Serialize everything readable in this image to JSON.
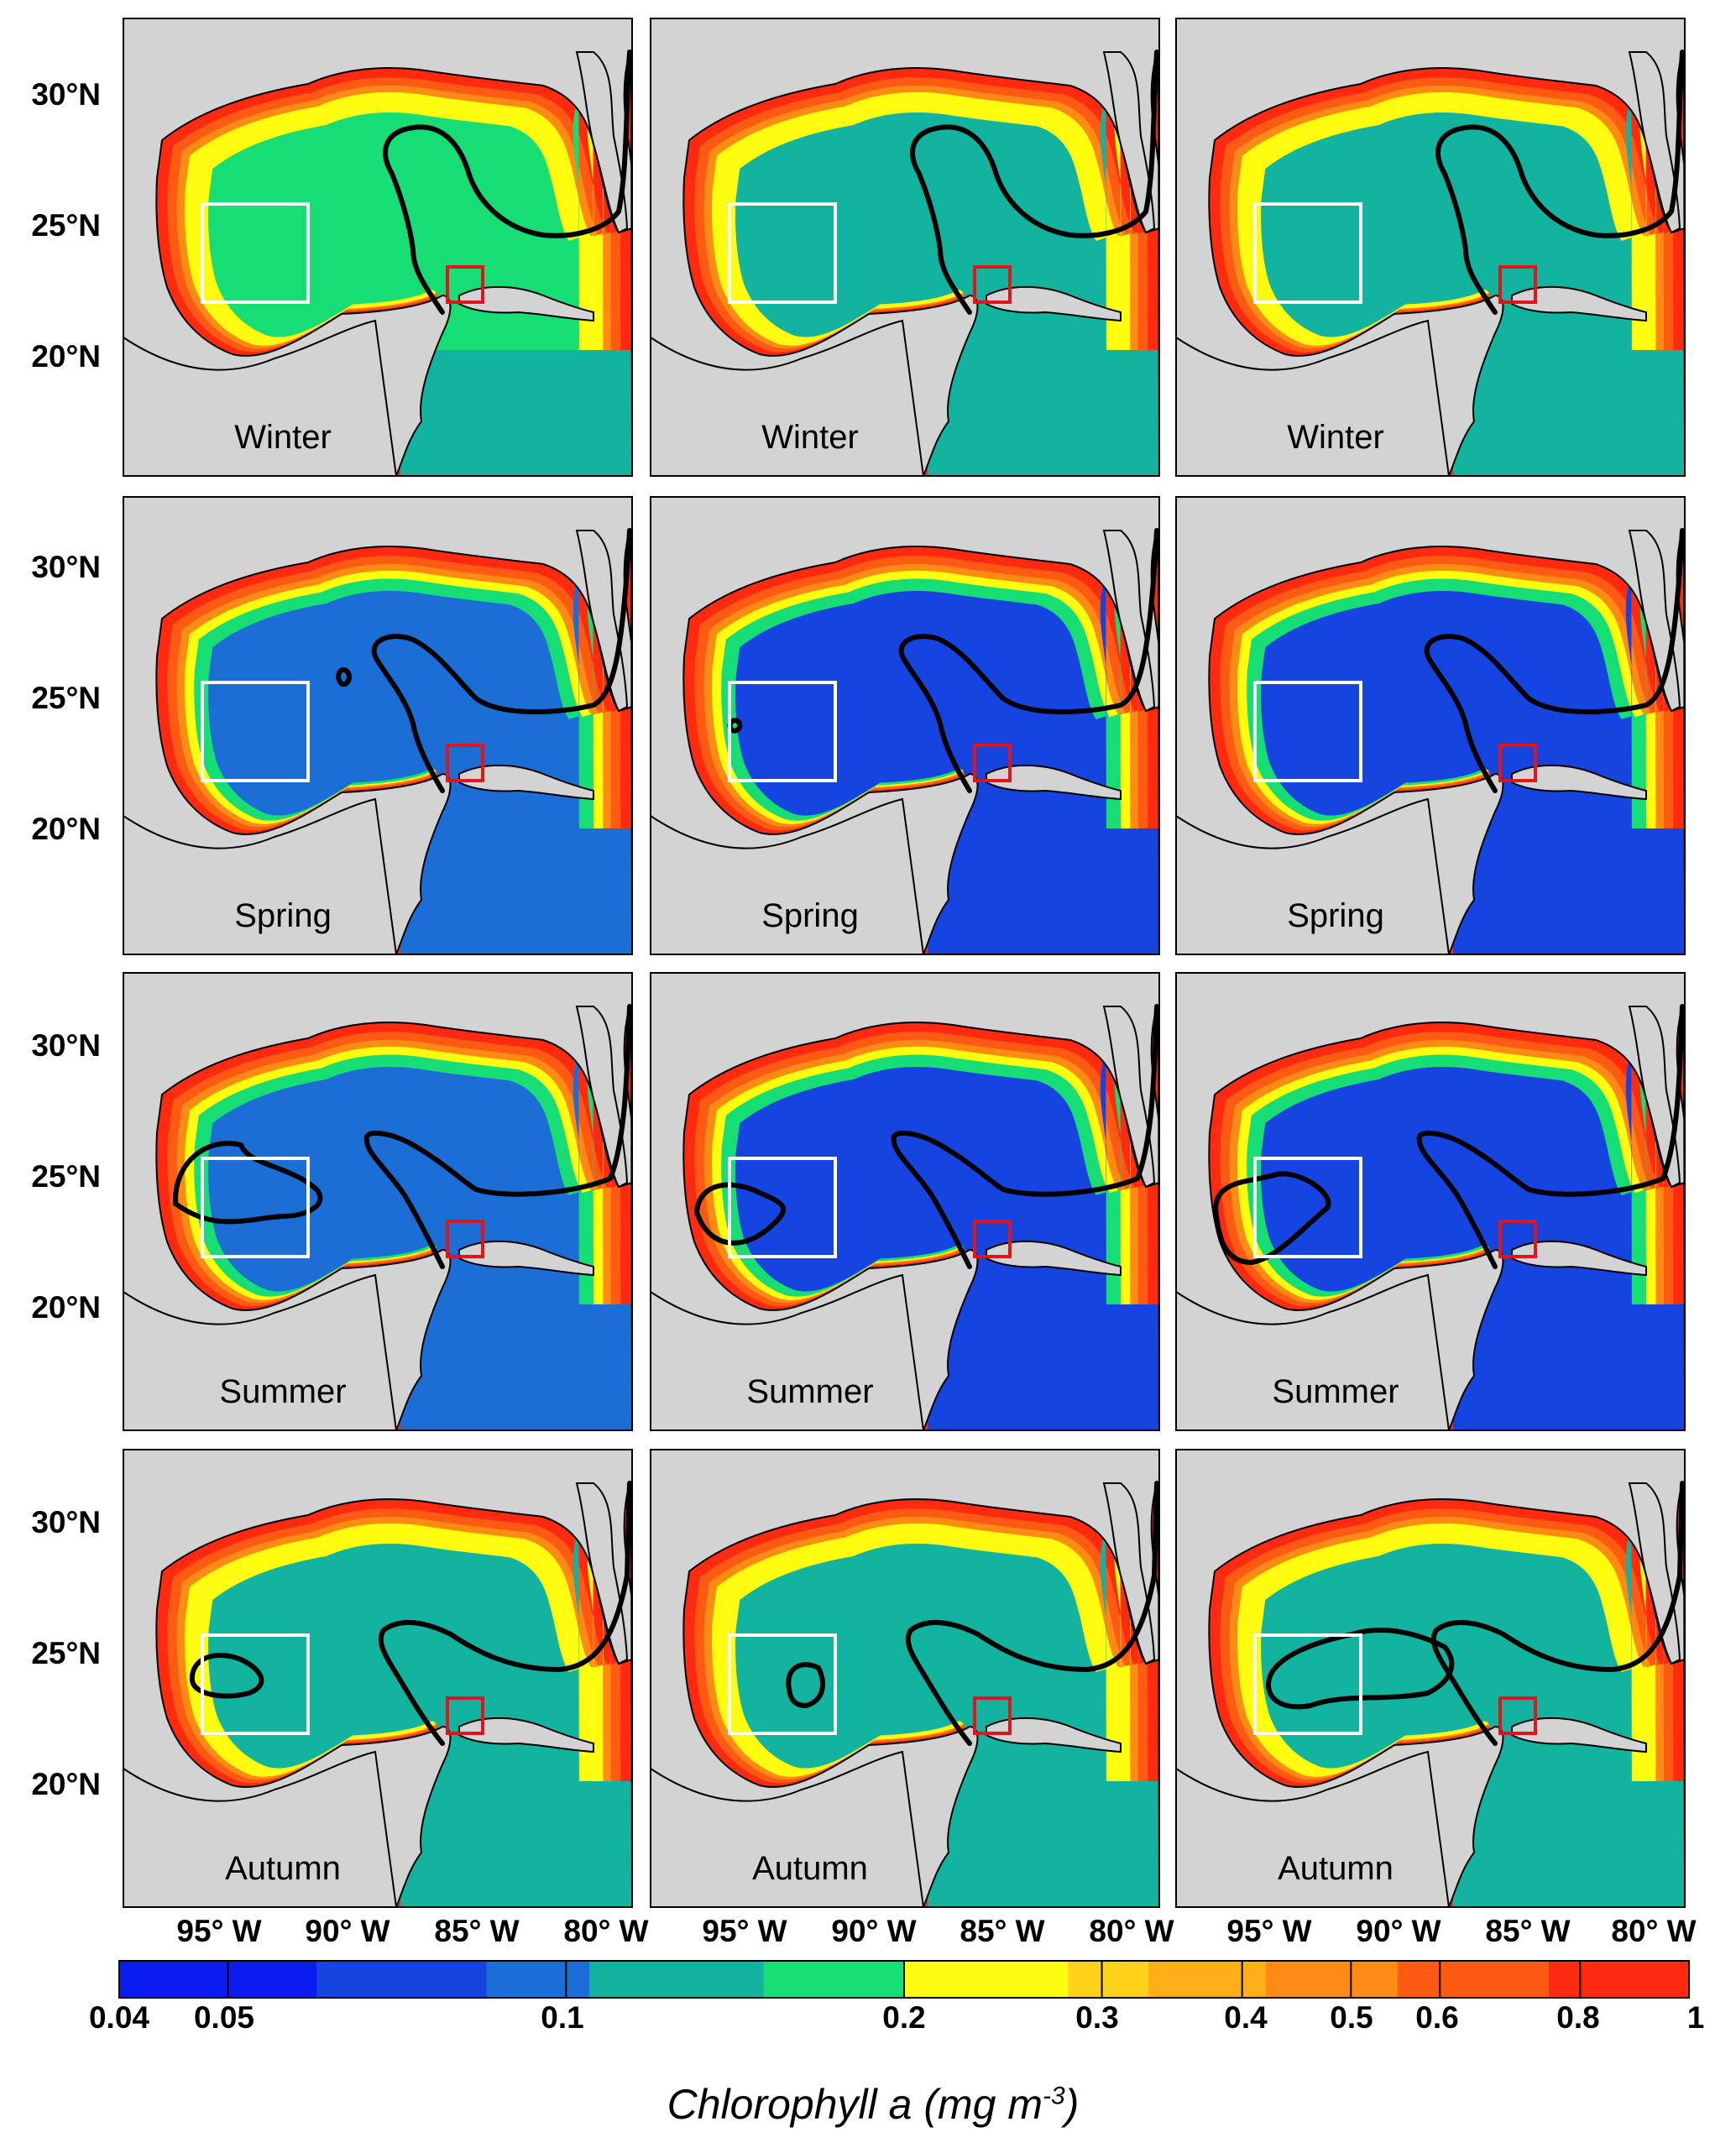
{
  "colorbar": {
    "colors": [
      "#0a1cf0",
      "#1644e0",
      "#1a6ed6",
      "#12b4a0",
      "#16de74",
      "#fffc10",
      "#ffd21a",
      "#ffb018",
      "#ff8a14",
      "#ff5a14",
      "#ff2a10"
    ],
    "tick_labels": [
      "0.04",
      "0.05",
      "0.1",
      "0.2",
      "0.3",
      "0.4",
      "0.5",
      "0.6",
      "0.8",
      "1"
    ],
    "title_main": "Chlorophyll a (mg m",
    "title_exp": "-3",
    "title_end": ")"
  },
  "lat_labels": [
    "30°N",
    "25°N",
    "20°N"
  ],
  "lon_labels": [
    "95° W",
    "90° W",
    "85° W",
    "80° W"
  ],
  "seasons": [
    "Winter",
    "Spring",
    "Summer",
    "Autumn"
  ],
  "colors": {
    "land": "#d3d3d3",
    "coast": "#000000",
    "box_white": "#ffffff",
    "box_red": "#e0141a",
    "front": "#000000"
  },
  "chart_data": {
    "type": "map-grid",
    "rows": [
      "Winter",
      "Spring",
      "Summer",
      "Autumn"
    ],
    "columns": 3,
    "variable": "Chlorophyll a (mg m-3)",
    "colorbar_range": [
      0.04,
      1
    ],
    "colorbar_scale": "log",
    "lat_ticks": [
      "30°N",
      "25°N",
      "20°N"
    ],
    "lon_ticks": [
      "95° W",
      "90° W",
      "85° W",
      "80° W"
    ],
    "offshore_level_by_row": [
      [
        4,
        3,
        3
      ],
      [
        2,
        1,
        1
      ],
      [
        2,
        1,
        1
      ],
      [
        3,
        3,
        3
      ]
    ]
  }
}
